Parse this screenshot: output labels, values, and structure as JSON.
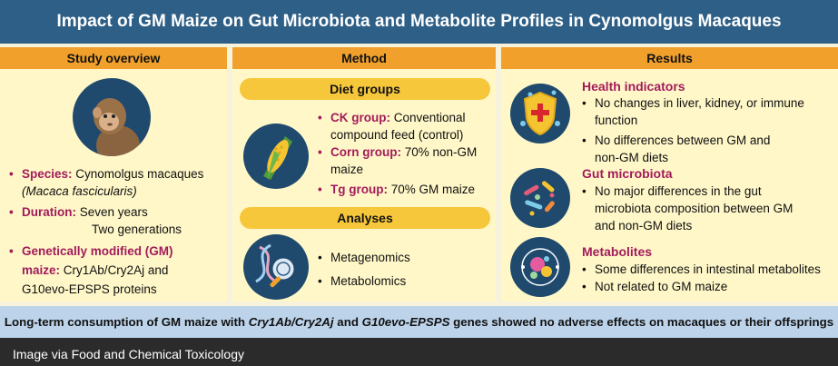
{
  "title": "Impact of GM Maize on Gut Microbiota and Metabolite Profiles in Cynomolgus Macaques",
  "columns": {
    "overview": {
      "header": "Study overview",
      "species_label": "Species:",
      "species_value": "Cynomolgus macaques",
      "species_latin": "(Macaca fascicularis)",
      "duration_label": "Duration:",
      "duration_value1": "Seven years",
      "duration_value2": "Two generations",
      "gm_label": "Genetically modified (GM)",
      "gm_label2": "maize:",
      "gm_value": "Cry1Ab/Cry2Aj and",
      "gm_value2": "G10evo-EPSPS proteins"
    },
    "method": {
      "header": "Method",
      "diet_pill": "Diet groups",
      "ck_label": "CK group:",
      "ck_value": "Conventional",
      "ck_value2": "compound feed (control)",
      "corn_label": "Corn group:",
      "corn_value": "70% non-GM",
      "corn_value2": "maize",
      "tg_label": "Tg group:",
      "tg_value": "70% GM maize",
      "analyses_pill": "Analyses",
      "analysis1": "Metagenomics",
      "analysis2": "Metabolomics"
    },
    "results": {
      "header": "Results",
      "health_title": "Health indicators",
      "health1a": "No changes in liver, kidney, or immune",
      "health1b": "function",
      "health2a": "No differences between GM and",
      "health2b": "non-GM diets",
      "gut_title": "Gut microbiota",
      "gut1a": "No major differences in the gut",
      "gut1b": "microbiota composition between GM",
      "gut1c": "and non-GM diets",
      "met_title": "Metabolites",
      "met1": "Some differences in intestinal metabolites",
      "met2": "Not related to GM maize"
    }
  },
  "conclusion": {
    "part1": "Long-term consumption of GM maize with ",
    "gene1": "Cry1Ab/Cry2Aj",
    "part2": " and ",
    "gene2": "G10evo-EPSPS",
    "part3": " genes showed no adverse effects on macaques or their offsprings"
  },
  "credit": "Image via Food and Chemical Toxicology",
  "colors": {
    "header_blue": "#2e5f86",
    "orange": "#f1a02c",
    "panel": "#fff7c8",
    "accent": "#a21b5b",
    "pill": "#f6c73a",
    "footer": "#bcd3ea",
    "icon_circle": "#1f4a6e"
  }
}
